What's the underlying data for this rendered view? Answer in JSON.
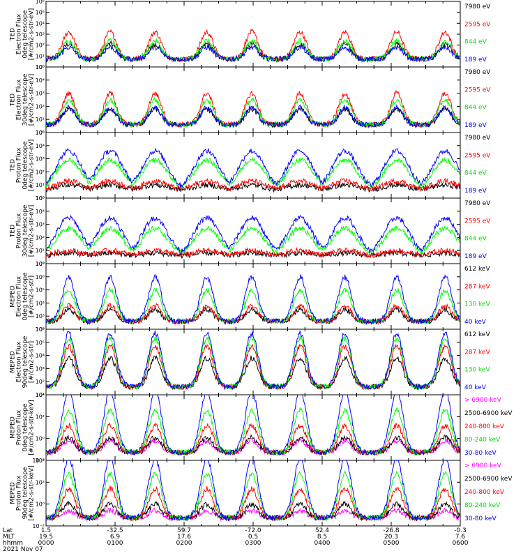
{
  "chart_data": {
    "type": "line",
    "date_label": "2021 Nov 07",
    "time_axis": {
      "row_labels": [
        "Lat",
        "MLT",
        "hhmm"
      ],
      "ticks": [
        {
          "lat": "1.5",
          "mlt": "19.5",
          "hhmm": "0000"
        },
        {
          "lat": "-32.5",
          "mlt": "6.9",
          "hhmm": "0100"
        },
        {
          "lat": "59.7",
          "mlt": "17.6",
          "hhmm": "0200"
        },
        {
          "lat": "-72.0",
          "mlt": "0.5",
          "hhmm": "0300"
        },
        {
          "lat": "52.4",
          "mlt": "8.5",
          "hhmm": "0400"
        },
        {
          "lat": "-26.8",
          "mlt": "20.3",
          "hhmm": "0500"
        },
        {
          "lat": "-0.3",
          "mlt": "7.6",
          "hhmm": "0600"
        }
      ]
    },
    "passes": [
      0.33,
      0.93,
      1.58,
      2.33,
      2.98,
      3.68,
      4.33,
      5.08,
      5.78
    ],
    "panels": [
      {
        "ylabel": [
          "TED",
          "Electron Flux",
          "0deg telescope",
          "[#/cm2-s-str-eV]"
        ],
        "yexp": [
          0,
          1,
          2,
          3,
          4,
          5,
          6
        ],
        "ytick_labels": [
          "10⁰",
          "10¹",
          "10²",
          "10³",
          "10⁴",
          "10⁵",
          "10⁶"
        ],
        "series": [
          {
            "name": "7980 eV",
            "color": "#000000",
            "peak": 1.5
          },
          {
            "name": "2595 eV",
            "color": "#ff0000",
            "peak": 2.6
          },
          {
            "name": "844 eV",
            "color": "#00ff00",
            "peak": 1.8
          },
          {
            "name": "189 eV",
            "color": "#0000ff",
            "peak": 1.2
          }
        ],
        "kind": "ted"
      },
      {
        "ylabel": [
          "TED",
          "Electron Flux",
          "30deg telescope",
          "[#/cm2-s-str-eV]"
        ],
        "yexp": [
          0,
          1,
          2,
          3,
          4,
          5
        ],
        "ytick_labels": [
          "10⁰",
          "10¹",
          "10²",
          "10³",
          "10⁴",
          "10⁵"
        ],
        "series": [
          {
            "name": "7980 eV",
            "color": "#000000",
            "peak": 1.3
          },
          {
            "name": "2595 eV",
            "color": "#ff0000",
            "peak": 2.5
          },
          {
            "name": "844 eV",
            "color": "#00ff00",
            "peak": 2.0
          },
          {
            "name": "189 eV",
            "color": "#0000ff",
            "peak": 1.4
          }
        ],
        "kind": "ted"
      },
      {
        "ylabel": [
          "TED",
          "Proton Flux",
          "0deg telescope",
          "[#/cm2-s-str-eV]"
        ],
        "yexp": [
          0,
          1,
          2,
          3,
          4,
          5
        ],
        "ytick_labels": [
          "10⁰",
          "10¹",
          "10²",
          "10³",
          "10⁴",
          "10⁵"
        ],
        "series": [
          {
            "name": "7980 eV",
            "color": "#000000",
            "peak": 0.5
          },
          {
            "name": "2595 eV",
            "color": "#ff0000",
            "peak": 0.8
          },
          {
            "name": "844 eV",
            "color": "#00ff00",
            "peak": 2.4
          },
          {
            "name": "189 eV",
            "color": "#0000ff",
            "peak": 3.1
          }
        ],
        "kind": "tedp"
      },
      {
        "ylabel": [
          "TED",
          "Proton Flux",
          "30deg telescope",
          "[#/cm2-s-str-eV]"
        ],
        "yexp": [
          0,
          1,
          2,
          3,
          4,
          5
        ],
        "ytick_labels": [
          "10⁰",
          "10¹",
          "10²",
          "10³",
          "10⁴",
          "10⁵"
        ],
        "series": [
          {
            "name": "7980 eV",
            "color": "#000000",
            "peak": 0.3
          },
          {
            "name": "2595 eV",
            "color": "#ff0000",
            "peak": 0.5
          },
          {
            "name": "844 eV",
            "color": "#00ff00",
            "peak": 2.2
          },
          {
            "name": "189 eV",
            "color": "#0000ff",
            "peak": 3.0
          }
        ],
        "kind": "tedp"
      },
      {
        "ylabel": [
          "MEPED",
          "Electron Flux",
          "0deg telescope",
          "[#/cm2-s-str]"
        ],
        "yexp": [
          2,
          3,
          4,
          5,
          6,
          7
        ],
        "ytick_labels": [
          "10²",
          "10³",
          "10⁴",
          "10⁵",
          "10⁶",
          "10⁷"
        ],
        "series": [
          {
            "name": "612 keV",
            "color": "#000000",
            "peak": 3.0
          },
          {
            "name": "287 keV",
            "color": "#ff0000",
            "peak": 3.3
          },
          {
            "name": "130 keV",
            "color": "#00ff00",
            "peak": 4.5
          },
          {
            "name": "40 keV",
            "color": "#0000ff",
            "peak": 5.5
          }
        ],
        "kind": "mepe"
      },
      {
        "ylabel": [
          "MEPED",
          "Electron Flux",
          "90deg telescope",
          "[#/cm2-s-str]"
        ],
        "yexp": [
          1,
          2,
          3,
          4,
          5,
          6
        ],
        "ytick_labels": [
          "10¹",
          "10²",
          "10³",
          "10⁴",
          "10⁵",
          "10⁶"
        ],
        "series": [
          {
            "name": "612 keV",
            "color": "#000000",
            "peak": 3.3
          },
          {
            "name": "287 keV",
            "color": "#ff0000",
            "peak": 4.2
          },
          {
            "name": "130 keV",
            "color": "#00ff00",
            "peak": 4.8
          },
          {
            "name": "40 keV",
            "color": "#0000ff",
            "peak": 5.2
          }
        ],
        "kind": "mepe90"
      },
      {
        "ylabel": [
          "MEPED",
          "Proton Flux",
          "0deg telescope",
          "[#/cm2-s-str-keV]"
        ],
        "yexp": [
          -2,
          0,
          2,
          4
        ],
        "ytick_labels": [
          "10⁻²",
          "10⁰",
          "10²",
          "10⁴"
        ],
        "series": [
          {
            "name": "> 6900 keV",
            "color": "#ff00ff",
            "peak": -0.8
          },
          {
            "name": "2500-6900 keV",
            "color": "#000000",
            "peak": -0.5
          },
          {
            "name": "240-800 keV",
            "color": "#ff0000",
            "peak": 0.6
          },
          {
            "name": "80-240 keV",
            "color": "#00ff00",
            "peak": 2.0
          },
          {
            "name": "30-80 keV",
            "color": "#0000ff",
            "peak": 3.8
          }
        ],
        "kind": "mepp"
      },
      {
        "ylabel": [
          "MEPED",
          "Proton Flux",
          "90deg telescope",
          "[#/cm2-s-str-keV]"
        ],
        "yexp": [
          -2,
          0,
          2,
          4
        ],
        "ytick_labels": [
          "10⁻²",
          "10⁰",
          "10²",
          "10⁴"
        ],
        "series": [
          {
            "name": "> 6900 keV",
            "color": "#ff00ff",
            "peak": -1.2
          },
          {
            "name": "2500-6900 keV",
            "color": "#000000",
            "peak": -0.6
          },
          {
            "name": "240-800 keV",
            "color": "#ff0000",
            "peak": 0.8
          },
          {
            "name": "80-240 keV",
            "color": "#00ff00",
            "peak": 2.2
          },
          {
            "name": "30-80 keV",
            "color": "#0000ff",
            "peak": 3.6
          }
        ],
        "kind": "mepp"
      }
    ]
  }
}
